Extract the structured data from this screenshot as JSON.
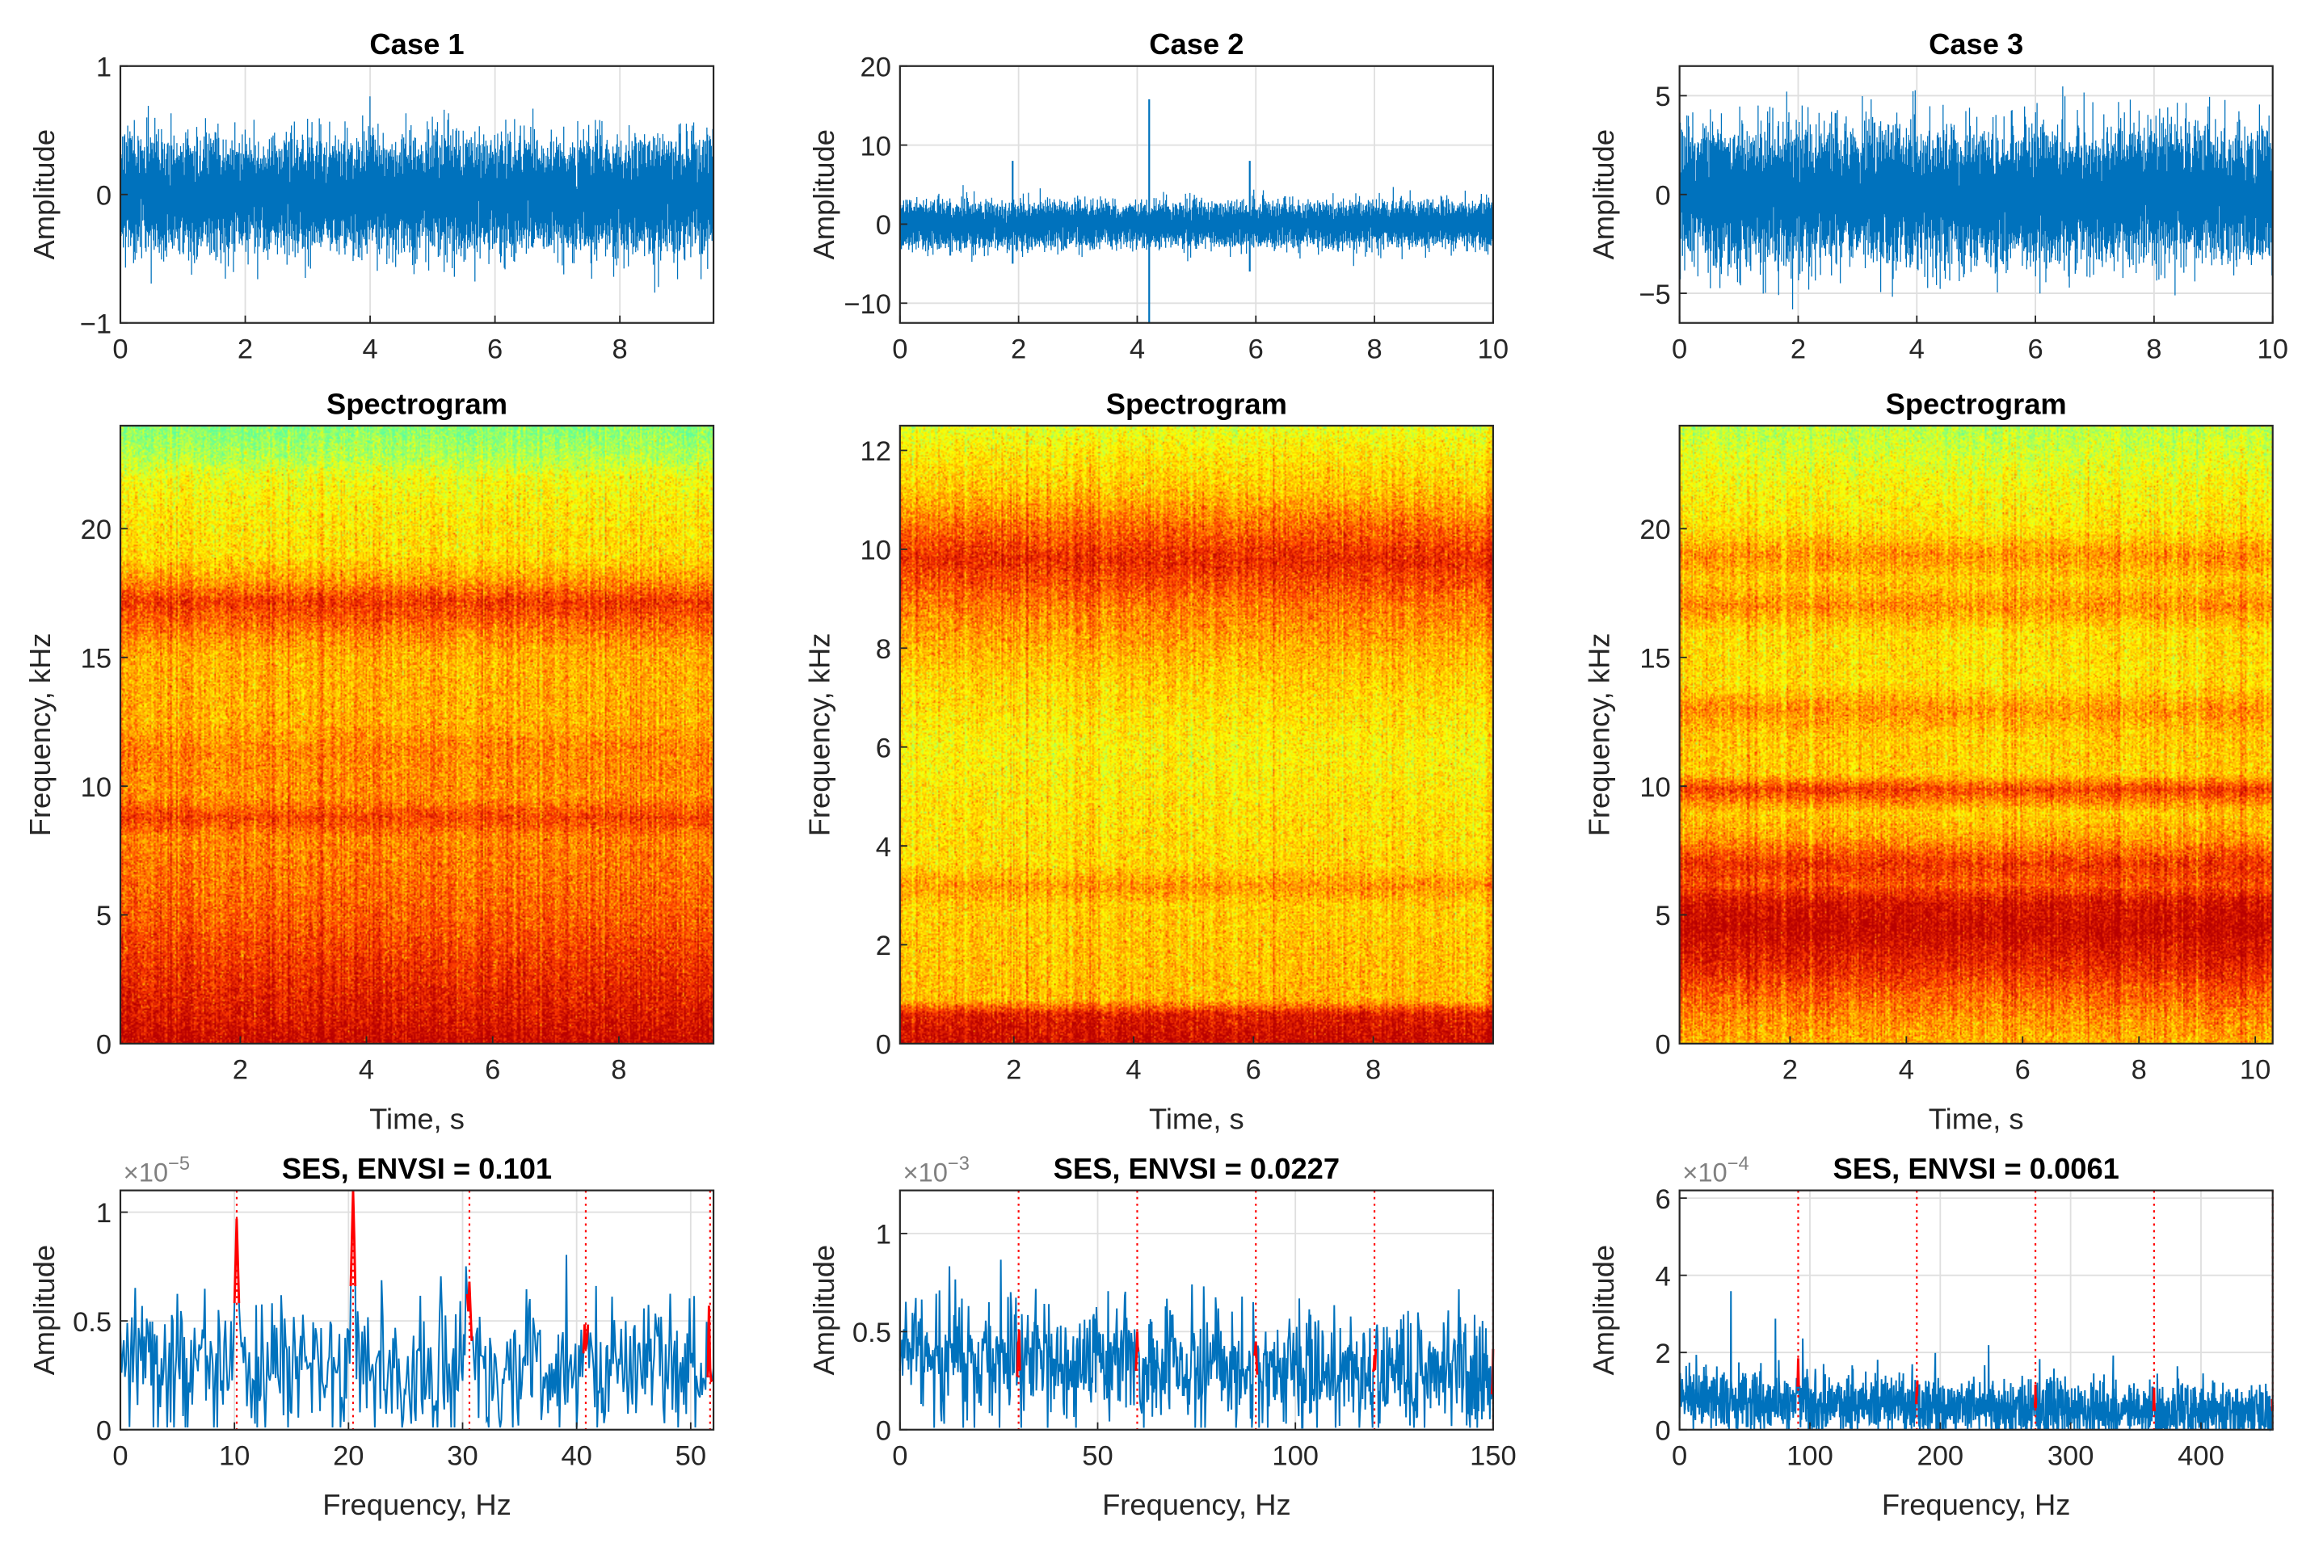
{
  "chart_data": [
    {
      "panel": "case1-signal",
      "type": "line",
      "title": "Case 1",
      "xlabel": "",
      "ylabel": "Amplitude",
      "xlim": [
        0,
        9.5
      ],
      "ylim": [
        -1,
        1
      ],
      "xticks": [
        0,
        2,
        4,
        6,
        8
      ],
      "xticklabels": [
        "0",
        "2",
        "4",
        "6",
        "8"
      ],
      "yticks": [
        -1,
        0,
        1
      ],
      "yticklabels": [
        "−1",
        "0",
        "1"
      ],
      "grid": true,
      "noise_std": 0.2,
      "spikes": [],
      "color": "#0072BD"
    },
    {
      "panel": "case2-signal",
      "type": "line",
      "title": "Case 2",
      "xlabel": "",
      "ylabel": "Amplitude",
      "xlim": [
        0,
        10
      ],
      "ylim": [
        -12.5,
        20
      ],
      "xticks": [
        0,
        2,
        4,
        6,
        8,
        10
      ],
      "xticklabels": [
        "0",
        "2",
        "4",
        "6",
        "8",
        "10"
      ],
      "yticks": [
        -10,
        0,
        10,
        20
      ],
      "yticklabels": [
        "−10",
        "0",
        "10",
        "20"
      ],
      "grid": true,
      "noise_std": 1.3,
      "spikes": [
        {
          "t": 4.2,
          "max": 15.8,
          "min": -12.5
        },
        {
          "t": 1.9,
          "max": 8,
          "min": -5
        },
        {
          "t": 5.9,
          "max": 8,
          "min": -6
        }
      ],
      "color": "#0072BD"
    },
    {
      "panel": "case3-signal",
      "type": "line",
      "title": "Case 3",
      "xlabel": "",
      "ylabel": "Amplitude",
      "xlim": [
        0,
        10
      ],
      "ylim": [
        -6.5,
        6.5
      ],
      "xticks": [
        0,
        2,
        4,
        6,
        8,
        10
      ],
      "xticklabels": [
        "0",
        "2",
        "4",
        "6",
        "8",
        "10"
      ],
      "yticks": [
        -5,
        0,
        5
      ],
      "yticklabels": [
        "−5",
        "0",
        "5"
      ],
      "grid": true,
      "noise_std": 1.55,
      "spikes": [],
      "color": "#0072BD"
    },
    {
      "panel": "case1-spectrogram",
      "type": "heatmap",
      "title": "Spectrogram",
      "xlabel": "Time, s",
      "ylabel": "Frequency, kHz",
      "xlim": [
        0.1,
        9.5
      ],
      "ylim": [
        0,
        24
      ],
      "xticks": [
        2,
        4,
        6,
        8
      ],
      "xticklabels": [
        "2",
        "4",
        "6",
        "8"
      ],
      "yticks": [
        0,
        5,
        10,
        15,
        20
      ],
      "yticklabels": [
        "0",
        "5",
        "10",
        "15",
        "20"
      ],
      "profile": [
        [
          0,
          0.97
        ],
        [
          1,
          0.9
        ],
        [
          3,
          0.82
        ],
        [
          5,
          0.72
        ],
        [
          8,
          0.64
        ],
        [
          8.8,
          0.78
        ],
        [
          9.6,
          0.62
        ],
        [
          11.5,
          0.64
        ],
        [
          12.5,
          0.56
        ],
        [
          15,
          0.55
        ],
        [
          15.8,
          0.62
        ],
        [
          16.5,
          0.72
        ],
        [
          17.2,
          0.8
        ],
        [
          18,
          0.6
        ],
        [
          19,
          0.45
        ],
        [
          20.5,
          0.42
        ],
        [
          22,
          0.35
        ],
        [
          22.8,
          0.2
        ],
        [
          24,
          0.08
        ]
      ]
    },
    {
      "panel": "case2-spectrogram",
      "type": "heatmap",
      "title": "Spectrogram",
      "xlabel": "Time, s",
      "ylabel": "Frequency, kHz",
      "xlim": [
        0.1,
        10
      ],
      "ylim": [
        0,
        12.5
      ],
      "xticks": [
        2,
        4,
        6,
        8
      ],
      "xticklabels": [
        "2",
        "4",
        "6",
        "8"
      ],
      "yticks": [
        0,
        2,
        4,
        6,
        8,
        10,
        12
      ],
      "yticklabels": [
        "0",
        "2",
        "4",
        "6",
        "8",
        "10",
        "12"
      ],
      "profile": [
        [
          0,
          0.97
        ],
        [
          0.6,
          0.9
        ],
        [
          0.9,
          0.55
        ],
        [
          2.8,
          0.5
        ],
        [
          3.2,
          0.62
        ],
        [
          3.6,
          0.48
        ],
        [
          5,
          0.44
        ],
        [
          6,
          0.4
        ],
        [
          7.5,
          0.5
        ],
        [
          8.8,
          0.66
        ],
        [
          9.8,
          0.85
        ],
        [
          10.5,
          0.7
        ],
        [
          11.2,
          0.52
        ],
        [
          12,
          0.42
        ],
        [
          12.5,
          0.32
        ]
      ]
    },
    {
      "panel": "case3-spectrogram",
      "type": "heatmap",
      "title": "Spectrogram",
      "xlabel": "Time, s",
      "ylabel": "Frequency, kHz",
      "xlim": [
        0.1,
        10.3
      ],
      "ylim": [
        0,
        24
      ],
      "xticks": [
        2,
        4,
        6,
        8,
        10
      ],
      "xticklabels": [
        "2",
        "4",
        "6",
        "8",
        "10"
      ],
      "yticks": [
        0,
        5,
        10,
        15,
        20
      ],
      "yticklabels": [
        "0",
        "5",
        "10",
        "15",
        "20"
      ],
      "profile": [
        [
          0,
          0.55
        ],
        [
          1,
          0.62
        ],
        [
          2,
          0.72
        ],
        [
          3,
          0.85
        ],
        [
          4.5,
          0.97
        ],
        [
          5.5,
          0.92
        ],
        [
          6.2,
          0.74
        ],
        [
          7,
          0.82
        ],
        [
          8,
          0.6
        ],
        [
          9,
          0.5
        ],
        [
          9.9,
          0.8
        ],
        [
          10.5,
          0.5
        ],
        [
          12,
          0.5
        ],
        [
          13,
          0.62
        ],
        [
          14,
          0.45
        ],
        [
          16,
          0.46
        ],
        [
          17,
          0.62
        ],
        [
          18,
          0.5
        ],
        [
          19,
          0.62
        ],
        [
          20,
          0.45
        ],
        [
          22,
          0.36
        ],
        [
          24,
          0.22
        ]
      ]
    },
    {
      "panel": "case1-ses",
      "type": "line",
      "title": "SES, ENVSI = 0.101",
      "exponent_base": "×10",
      "exponent": "−5",
      "xlabel": "Frequency, Hz",
      "ylabel": "Amplitude",
      "xlim": [
        0,
        52
      ],
      "ylim": [
        0,
        1.1
      ],
      "xticks": [
        0,
        10,
        20,
        30,
        40,
        50
      ],
      "xticklabels": [
        "0",
        "10",
        "20",
        "30",
        "40",
        "50"
      ],
      "yticks": [
        0,
        0.5,
        1
      ],
      "yticklabels": [
        "0",
        "0.5",
        "1"
      ],
      "grid": true,
      "baseline_start": 0.3,
      "baseline_end": 0.28,
      "noise": 0.18,
      "harmonics": [
        10.2,
        20.4,
        30.6,
        40.8,
        51.7
      ],
      "peaks": [
        0.97,
        1.1,
        0.68,
        0.37,
        0.28
      ],
      "color": "#0072BD",
      "harmonic_color": "#FF0000"
    },
    {
      "panel": "case2-ses",
      "type": "line",
      "title": "SES, ENVSI = 0.0227",
      "exponent_base": "×10",
      "exponent": "−3",
      "xlabel": "Frequency, Hz",
      "ylabel": "Amplitude",
      "xlim": [
        0,
        150
      ],
      "ylim": [
        0,
        1.22
      ],
      "xticks": [
        0,
        50,
        100,
        150
      ],
      "xticklabels": [
        "0",
        "50",
        "100",
        "150"
      ],
      "yticks": [
        0,
        0.5,
        1
      ],
      "yticklabels": [
        "0",
        "0.5",
        "1"
      ],
      "grid": true,
      "baseline_start": 0.45,
      "baseline_end": 0.27,
      "noise": 0.16,
      "harmonics": [
        30,
        60,
        90,
        120,
        150
      ],
      "peaks": [
        0.45,
        0.5,
        0.45,
        0.38,
        0.3
      ],
      "color": "#0072BD",
      "harmonic_color": "#FF0000"
    },
    {
      "panel": "case3-ses",
      "type": "line",
      "title": "SES, ENVSI = 0.0061",
      "exponent_base": "×10",
      "exponent": "−4",
      "xlabel": "Frequency, Hz",
      "ylabel": "Amplitude",
      "xlim": [
        0,
        455
      ],
      "ylim": [
        0,
        6.2
      ],
      "xticks": [
        0,
        100,
        200,
        300,
        400
      ],
      "xticklabels": [
        "0",
        "100",
        "200",
        "300",
        "400"
      ],
      "yticks": [
        0,
        2,
        4,
        6
      ],
      "yticklabels": [
        "0",
        "2",
        "4",
        "6"
      ],
      "grid": true,
      "baseline_start": 0.9,
      "baseline_end": 0.4,
      "noise": 0.55,
      "harmonics": [
        91,
        182,
        273,
        364,
        455
      ],
      "peaks": [
        1.85,
        1.1,
        0.7,
        0.8,
        0.6
      ],
      "color": "#0072BD",
      "harmonic_color": "#FF0000"
    }
  ]
}
